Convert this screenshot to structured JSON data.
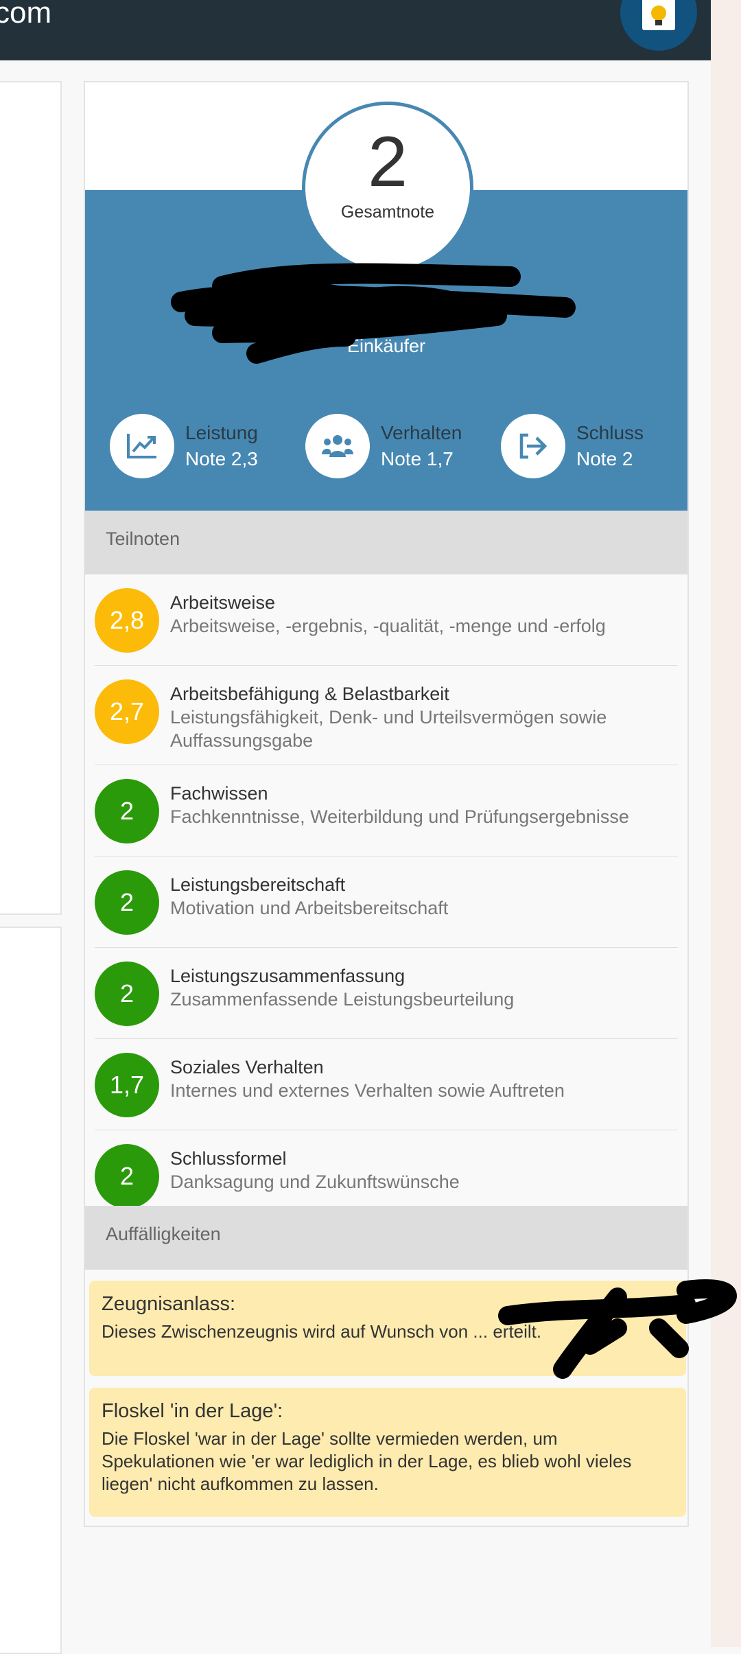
{
  "header": {
    "title": "com",
    "app_icon": "lightbulb-document-icon"
  },
  "summary": {
    "grade": "2",
    "grade_label": "Gesamtnote",
    "job_title": "Einkäufer"
  },
  "categories": [
    {
      "label": "Leistung",
      "note": "Note 2,3",
      "icon": "chart-line-icon"
    },
    {
      "label": "Verhalten",
      "note": "Note 1,7",
      "icon": "users-icon"
    },
    {
      "label": "Schluss",
      "note": "Note 2",
      "icon": "sign-out-icon"
    }
  ],
  "teilnoten": {
    "heading": "Teilnoten",
    "items": [
      {
        "grade": "2,8",
        "title": "Arbeitsweise",
        "desc": "Arbeitsweise, -ergebnis, -qualität, -menge und -erfolg",
        "color": "#fbbb08"
      },
      {
        "grade": "2,7",
        "title": "Arbeitsbefähigung & Belastbarkeit",
        "desc": "Leistungsfähigkeit, Denk- und Urteilsvermögen sowie Auffassungsgabe",
        "color": "#fbbb08"
      },
      {
        "grade": "2",
        "title": "Fachwissen",
        "desc": "Fachkenntnisse, Weiterbildung und Prüfungsergebnisse",
        "color": "#2a9a0b"
      },
      {
        "grade": "2",
        "title": "Leistungsbereitschaft",
        "desc": "Motivation und Arbeitsbereitschaft",
        "color": "#2a9a0b"
      },
      {
        "grade": "2",
        "title": "Leistungszusammenfassung",
        "desc": "Zusammenfassende Leistungsbeurteilung",
        "color": "#2a9a0b"
      },
      {
        "grade": "1,7",
        "title": "Soziales Verhalten",
        "desc": "Internes und externes Verhalten sowie Auftreten",
        "color": "#2a9a0b"
      },
      {
        "grade": "2",
        "title": "Schlussformel",
        "desc": "Danksagung und Zukunftswünsche",
        "color": "#2a9a0b"
      }
    ]
  },
  "auffaelligkeiten": {
    "heading": "Auffälligkeiten",
    "items": [
      {
        "title": "Zeugnisanlass:",
        "body": "Dieses Zwischenzeugnis wird auf Wunsch von ... erteilt."
      },
      {
        "title": "Floskel 'in der Lage':",
        "body": "Die Floskel 'war in der Lage' sollte vermieden werden, um Spekulationen wie 'er war lediglich in der Lage, es blieb wohl vieles liegen' nicht aufkommen zu lassen."
      }
    ]
  },
  "colors": {
    "header": "#22313a",
    "accent": "#4788b3",
    "warning": "#fbbb08",
    "good": "#2a9a0b",
    "note_bg": "#fdebb0"
  }
}
